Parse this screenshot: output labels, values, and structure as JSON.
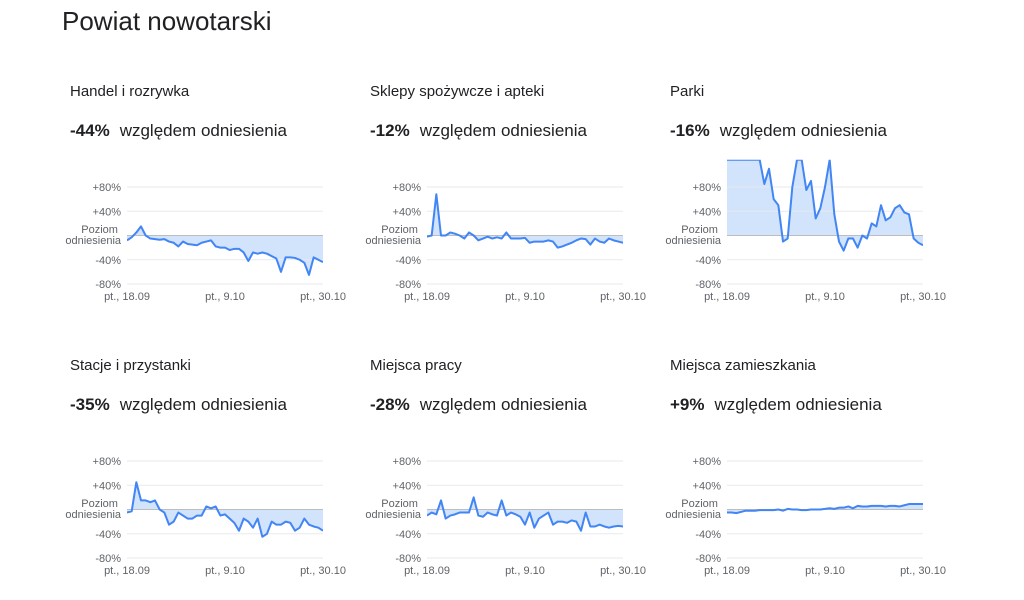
{
  "page_title": "Powiat nowotarski",
  "chart_data": [
    {
      "type": "line",
      "title": "Handel i rozrywka",
      "headline": "-44%",
      "subtitle": "względem odniesienia",
      "color": "#4285f4",
      "fill_color": "#d2e3fc",
      "categories": [
        "pt., 18.09",
        null,
        null,
        null,
        null,
        null,
        null,
        null,
        null,
        null,
        null,
        null,
        null,
        null,
        null,
        null,
        null,
        null,
        null,
        null,
        null,
        "pt., 9.10",
        null,
        null,
        null,
        null,
        null,
        null,
        null,
        null,
        null,
        null,
        null,
        null,
        null,
        null,
        null,
        null,
        null,
        null,
        null,
        null,
        "pt., 30.10"
      ],
      "values": [
        -8,
        -3,
        5,
        15,
        0,
        -5,
        -6,
        -7,
        -6,
        -10,
        -12,
        -18,
        -10,
        -14,
        -15,
        -16,
        -12,
        -10,
        -8,
        -18,
        -20,
        -20,
        -24,
        -22,
        -22,
        -28,
        -42,
        -28,
        -30,
        -28,
        -30,
        -34,
        -38,
        -60,
        -36,
        -36,
        -37,
        -40,
        -45,
        -65,
        -36,
        -40,
        -44
      ],
      "ylim": [
        -80,
        80
      ],
      "yticks": [
        {
          "value": 80,
          "label": "+80%"
        },
        {
          "value": 40,
          "label": "+40%"
        },
        {
          "value": 0,
          "label": "Poziom odniesienia"
        },
        {
          "value": -40,
          "label": "-40%"
        },
        {
          "value": -80,
          "label": "-80%"
        }
      ],
      "grid": true
    },
    {
      "type": "line",
      "title": "Sklepy spożywcze i apteki",
      "headline": "-12%",
      "subtitle": "względem odniesienia",
      "color": "#4285f4",
      "fill_color": "#d2e3fc",
      "categories": [
        "pt., 18.09",
        null,
        null,
        null,
        null,
        null,
        null,
        null,
        null,
        null,
        null,
        null,
        null,
        null,
        null,
        null,
        null,
        null,
        null,
        null,
        null,
        "pt., 9.10",
        null,
        null,
        null,
        null,
        null,
        null,
        null,
        null,
        null,
        null,
        null,
        null,
        null,
        null,
        null,
        null,
        null,
        null,
        null,
        null,
        "pt., 30.10"
      ],
      "values": [
        -2,
        0,
        68,
        0,
        0,
        5,
        3,
        0,
        -5,
        5,
        0,
        -8,
        -5,
        -2,
        -5,
        -3,
        -5,
        5,
        -5,
        -5,
        -5,
        -4,
        -12,
        -10,
        -10,
        -10,
        -8,
        -10,
        -20,
        -18,
        -15,
        -12,
        -8,
        -5,
        -6,
        -15,
        -5,
        -10,
        -12,
        -5,
        -8,
        -10,
        -12
      ],
      "ylim": [
        -80,
        80
      ],
      "yticks": [
        {
          "value": 80,
          "label": "+80%"
        },
        {
          "value": 40,
          "label": "+40%"
        },
        {
          "value": 0,
          "label": "Poziom odniesienia"
        },
        {
          "value": -40,
          "label": "-40%"
        },
        {
          "value": -80,
          "label": "-80%"
        }
      ],
      "grid": true
    },
    {
      "type": "line",
      "title": "Parki",
      "headline": "-16%",
      "subtitle": "względem odniesienia",
      "color": "#4285f4",
      "fill_color": "#d2e3fc",
      "categories": [
        "pt., 18.09",
        null,
        null,
        null,
        null,
        null,
        null,
        null,
        null,
        null,
        null,
        null,
        null,
        null,
        null,
        null,
        null,
        null,
        null,
        null,
        null,
        "pt., 9.10",
        null,
        null,
        null,
        null,
        null,
        null,
        null,
        null,
        null,
        null,
        null,
        null,
        null,
        null,
        null,
        null,
        null,
        null,
        null,
        null,
        "pt., 30.10"
      ],
      "values": [
        125,
        125,
        125,
        125,
        125,
        125,
        125,
        125,
        85,
        110,
        60,
        50,
        -10,
        -5,
        80,
        125,
        125,
        75,
        90,
        28,
        45,
        80,
        125,
        35,
        -10,
        -25,
        -5,
        -5,
        -20,
        0,
        -5,
        20,
        15,
        50,
        25,
        30,
        45,
        50,
        38,
        35,
        -5,
        -12,
        -16
      ],
      "ylim": [
        -80,
        125
      ],
      "yticks": [
        {
          "value": 80,
          "label": "+80%"
        },
        {
          "value": 40,
          "label": "+40%"
        },
        {
          "value": 0,
          "label": "Poziom odniesienia"
        },
        {
          "value": -40,
          "label": "-40%"
        },
        {
          "value": -80,
          "label": "-80%"
        }
      ],
      "grid": true
    },
    {
      "type": "line",
      "title": "Stacje i przystanki",
      "headline": "-35%",
      "subtitle": "względem odniesienia",
      "color": "#4285f4",
      "fill_color": "#d2e3fc",
      "categories": [
        "pt., 18.09",
        null,
        null,
        null,
        null,
        null,
        null,
        null,
        null,
        null,
        null,
        null,
        null,
        null,
        null,
        null,
        null,
        null,
        null,
        null,
        null,
        "pt., 9.10",
        null,
        null,
        null,
        null,
        null,
        null,
        null,
        null,
        null,
        null,
        null,
        null,
        null,
        null,
        null,
        null,
        null,
        null,
        null,
        null,
        "pt., 30.10"
      ],
      "values": [
        -5,
        -3,
        45,
        15,
        15,
        12,
        15,
        0,
        -5,
        -25,
        -20,
        -5,
        -10,
        -15,
        -15,
        -10,
        -10,
        5,
        2,
        5,
        -10,
        -8,
        -15,
        -22,
        -35,
        -15,
        -20,
        -30,
        -15,
        -45,
        -40,
        -20,
        -25,
        -25,
        -20,
        -22,
        -35,
        -30,
        -15,
        -25,
        -28,
        -30,
        -35
      ],
      "ylim": [
        -80,
        80
      ],
      "yticks": [
        {
          "value": 80,
          "label": "+80%"
        },
        {
          "value": 40,
          "label": "+40%"
        },
        {
          "value": 0,
          "label": "Poziom odniesienia"
        },
        {
          "value": -40,
          "label": "-40%"
        },
        {
          "value": -80,
          "label": "-80%"
        }
      ],
      "grid": true
    },
    {
      "type": "line",
      "title": "Miejsca pracy",
      "headline": "-28%",
      "subtitle": "względem odniesienia",
      "color": "#4285f4",
      "fill_color": "#d2e3fc",
      "categories": [
        "pt., 18.09",
        null,
        null,
        null,
        null,
        null,
        null,
        null,
        null,
        null,
        null,
        null,
        null,
        null,
        null,
        null,
        null,
        null,
        null,
        null,
        null,
        "pt., 9.10",
        null,
        null,
        null,
        null,
        null,
        null,
        null,
        null,
        null,
        null,
        null,
        null,
        null,
        null,
        null,
        null,
        null,
        null,
        null,
        null,
        "pt., 30.10"
      ],
      "values": [
        -10,
        -5,
        -8,
        15,
        -15,
        -10,
        -8,
        -5,
        -5,
        -5,
        20,
        -10,
        -12,
        -5,
        -8,
        -10,
        15,
        -10,
        -5,
        -8,
        -12,
        -25,
        -5,
        -30,
        -15,
        -10,
        -5,
        -25,
        -20,
        -20,
        -22,
        -18,
        -20,
        -35,
        -5,
        -28,
        -28,
        -25,
        -28,
        -30,
        -28,
        -27,
        -28
      ],
      "ylim": [
        -80,
        80
      ],
      "yticks": [
        {
          "value": 80,
          "label": "+80%"
        },
        {
          "value": 40,
          "label": "+40%"
        },
        {
          "value": 0,
          "label": "Poziom odniesienia"
        },
        {
          "value": -40,
          "label": "-40%"
        },
        {
          "value": -80,
          "label": "-80%"
        }
      ],
      "grid": true
    },
    {
      "type": "line",
      "title": "Miejsca zamieszkania",
      "headline": "+9%",
      "subtitle": "względem odniesienia",
      "color": "#4285f4",
      "fill_color": "#d2e3fc",
      "categories": [
        "pt., 18.09",
        null,
        null,
        null,
        null,
        null,
        null,
        null,
        null,
        null,
        null,
        null,
        null,
        null,
        null,
        null,
        null,
        null,
        null,
        null,
        null,
        "pt., 9.10",
        null,
        null,
        null,
        null,
        null,
        null,
        null,
        null,
        null,
        null,
        null,
        null,
        null,
        null,
        null,
        null,
        null,
        null,
        null,
        null,
        "pt., 30.10"
      ],
      "values": [
        -5,
        -5,
        -6,
        -4,
        -2,
        -2,
        -2,
        -1,
        -1,
        -1,
        -1,
        0,
        -2,
        1,
        0,
        0,
        -1,
        -1,
        0,
        0,
        0,
        1,
        2,
        1,
        3,
        3,
        5,
        2,
        6,
        5,
        5,
        6,
        6,
        6,
        5,
        6,
        6,
        5,
        7,
        9,
        9,
        9,
        9
      ],
      "ylim": [
        -80,
        80
      ],
      "yticks": [
        {
          "value": 80,
          "label": "+80%"
        },
        {
          "value": 40,
          "label": "+40%"
        },
        {
          "value": 0,
          "label": "Poziom odniesienia"
        },
        {
          "value": -40,
          "label": "-40%"
        },
        {
          "value": -80,
          "label": "-80%"
        }
      ],
      "grid": true
    }
  ]
}
